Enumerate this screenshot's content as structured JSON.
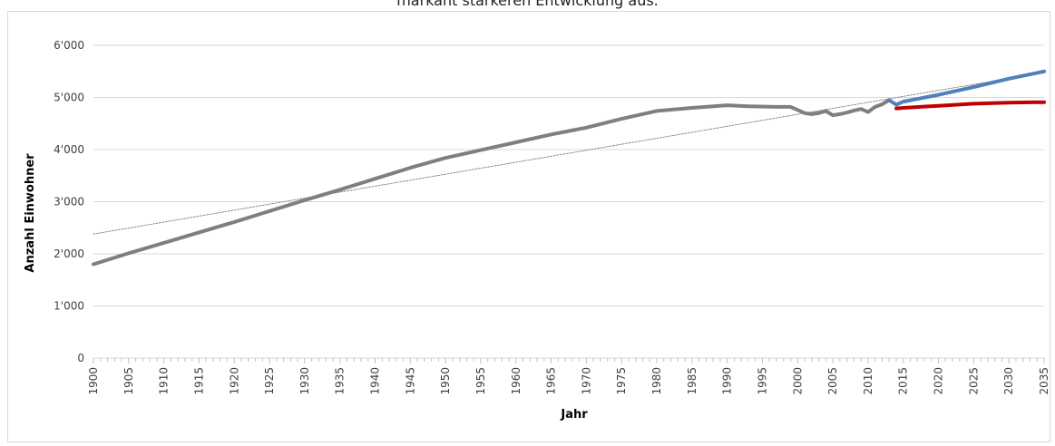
{
  "caption": "markant stärkeren Entwicklung aus.",
  "chart_data": {
    "type": "line",
    "xlabel": "Jahr",
    "ylabel": "Anzahl Einwohner",
    "xlim": [
      1900,
      2035
    ],
    "ylim": [
      0,
      6000
    ],
    "y_ticks": [
      0,
      1000,
      2000,
      3000,
      4000,
      5000,
      6000
    ],
    "y_tick_labels": [
      "0",
      "1'000",
      "2'000",
      "3'000",
      "4'000",
      "5'000",
      "6'000"
    ],
    "x_tick_labels": [
      "1900",
      "1905",
      "1910",
      "1915",
      "1920",
      "1925",
      "1930",
      "1935",
      "1940",
      "1945",
      "1950",
      "1955",
      "1960",
      "1965",
      "1970",
      "1975",
      "1980",
      "1985",
      "1990",
      "1995",
      "2000",
      "2005",
      "2010",
      "2015",
      "2020",
      "2025",
      "2030",
      "2035"
    ],
    "grid": "horizontal",
    "colors": {
      "historical": "#7f7f7f",
      "scenario_high": "#4f81bd",
      "scenario_low": "#c00000",
      "trend": "#7f7f7f",
      "grid": "#d9d9d9"
    },
    "series": [
      {
        "key": "historical",
        "x": [
          1900,
          1905,
          1910,
          1915,
          1920,
          1925,
          1930,
          1935,
          1940,
          1945,
          1950,
          1955,
          1960,
          1965,
          1970,
          1975,
          1980,
          1985,
          1990,
          1993,
          1997,
          1999,
          2000,
          2001,
          2002,
          2003,
          2004,
          2005,
          2006,
          2007,
          2008,
          2009,
          2010,
          2011,
          2012,
          2013
        ],
        "y": [
          1800,
          2010,
          2210,
          2410,
          2610,
          2820,
          3030,
          3230,
          3440,
          3650,
          3840,
          3990,
          4140,
          4290,
          4420,
          4590,
          4740,
          4800,
          4850,
          4830,
          4820,
          4820,
          4760,
          4700,
          4680,
          4700,
          4740,
          4660,
          4680,
          4710,
          4750,
          4780,
          4720,
          4820,
          4870,
          4950
        ]
      },
      {
        "key": "scenario_high",
        "x": [
          2013,
          2014,
          2015,
          2020,
          2025,
          2030,
          2035
        ],
        "y": [
          4950,
          4860,
          4920,
          5050,
          5200,
          5360,
          5500
        ]
      },
      {
        "key": "scenario_low",
        "x": [
          2014,
          2015,
          2020,
          2025,
          2030,
          2035
        ],
        "y": [
          4790,
          4800,
          4840,
          4880,
          4900,
          4910
        ]
      },
      {
        "key": "trend",
        "x": [
          1900,
          2035
        ],
        "y": [
          2380,
          5480
        ]
      }
    ]
  }
}
